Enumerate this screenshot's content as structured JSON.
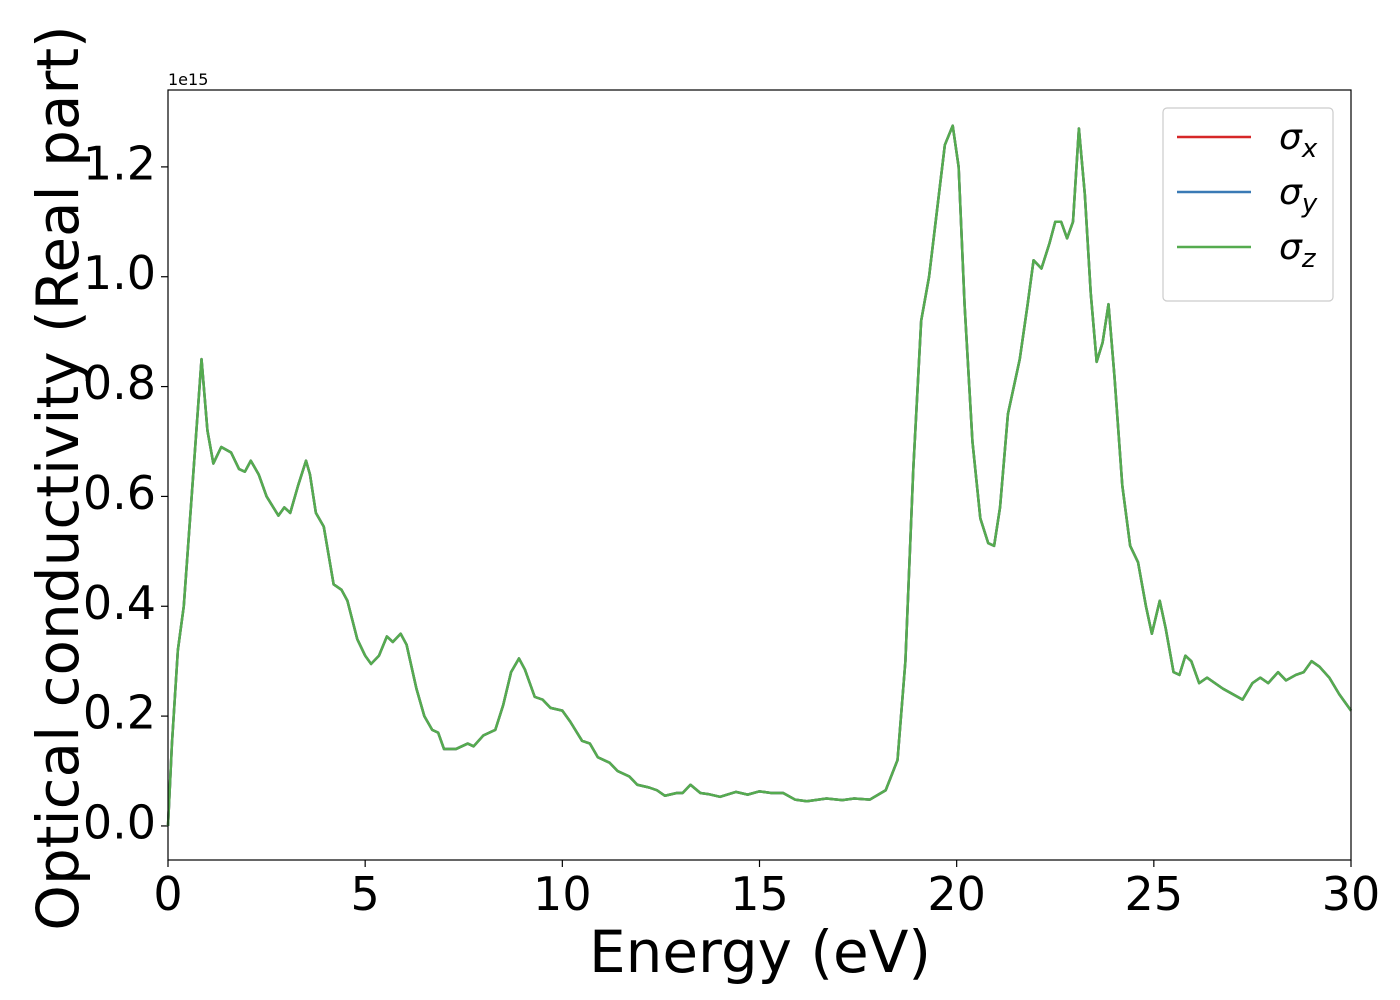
{
  "chart_data": {
    "type": "line",
    "xlabel": "Energy (eV)",
    "ylabel": "Optical conductivity (Real part)",
    "y_offset_label": "1e15",
    "xlim": [
      0,
      30
    ],
    "ylim": [
      -0.062,
      1.34
    ],
    "xticks": [
      0,
      5,
      10,
      15,
      20,
      25,
      30
    ],
    "yticks": [
      {
        "value": 0,
        "label": "0.0"
      },
      0.2,
      0.4,
      0.6,
      0.8,
      {
        "value": 1,
        "label": "1.0"
      },
      1.2
    ],
    "legend": "upper right",
    "grid": false,
    "x": [
      0,
      0.1,
      0.25,
      0.4,
      0.55,
      0.7,
      0.85,
      1.0,
      1.15,
      1.35,
      1.6,
      1.8,
      1.95,
      2.1,
      2.3,
      2.5,
      2.8,
      2.95,
      3.1,
      3.3,
      3.5,
      3.6,
      3.75,
      3.95,
      4.2,
      4.4,
      4.55,
      4.8,
      5.0,
      5.15,
      5.35,
      5.55,
      5.7,
      5.9,
      6.05,
      6.3,
      6.5,
      6.7,
      6.85,
      7.0,
      7.3,
      7.6,
      7.75,
      8.0,
      8.3,
      8.5,
      8.7,
      8.9,
      9.05,
      9.3,
      9.5,
      9.7,
      10.0,
      10.2,
      10.5,
      10.7,
      10.9,
      11.2,
      11.4,
      11.7,
      11.9,
      12.2,
      12.4,
      12.6,
      12.9,
      13.05,
      13.25,
      13.5,
      13.7,
      14.0,
      14.4,
      14.7,
      15.0,
      15.3,
      15.6,
      15.9,
      16.2,
      16.7,
      17.1,
      17.4,
      17.8,
      18.2,
      18.5,
      18.7,
      18.9,
      19.1,
      19.3,
      19.5,
      19.7,
      19.9,
      20.05,
      20.2,
      20.4,
      20.6,
      20.8,
      20.95,
      21.1,
      21.3,
      21.6,
      21.8,
      21.95,
      22.15,
      22.35,
      22.5,
      22.65,
      22.8,
      22.95,
      23.1,
      23.25,
      23.4,
      23.55,
      23.7,
      23.85,
      24.0,
      24.2,
      24.4,
      24.6,
      24.8,
      24.95,
      25.15,
      25.3,
      25.5,
      25.65,
      25.8,
      25.95,
      26.15,
      26.35,
      26.55,
      26.75,
      27.0,
      27.25,
      27.5,
      27.7,
      27.9,
      28.15,
      28.35,
      28.6,
      28.8,
      29.0,
      29.2,
      29.45,
      29.7,
      30.0
    ],
    "series": [
      {
        "name": "σx",
        "color": "#d62728",
        "values": [
          0.0,
          0.15,
          0.32,
          0.4,
          0.55,
          0.7,
          0.85,
          0.72,
          0.66,
          0.69,
          0.68,
          0.65,
          0.645,
          0.665,
          0.64,
          0.6,
          0.565,
          0.58,
          0.57,
          0.62,
          0.665,
          0.64,
          0.57,
          0.545,
          0.44,
          0.43,
          0.41,
          0.34,
          0.31,
          0.295,
          0.31,
          0.345,
          0.335,
          0.35,
          0.33,
          0.25,
          0.2,
          0.175,
          0.17,
          0.14,
          0.14,
          0.15,
          0.145,
          0.165,
          0.175,
          0.22,
          0.28,
          0.305,
          0.285,
          0.235,
          0.23,
          0.215,
          0.21,
          0.19,
          0.155,
          0.15,
          0.125,
          0.115,
          0.1,
          0.09,
          0.075,
          0.07,
          0.065,
          0.055,
          0.06,
          0.06,
          0.075,
          0.06,
          0.058,
          0.053,
          0.062,
          0.057,
          0.063,
          0.06,
          0.06,
          0.048,
          0.045,
          0.05,
          0.047,
          0.05,
          0.048,
          0.065,
          0.12,
          0.3,
          0.65,
          0.92,
          1.0,
          1.12,
          1.24,
          1.275,
          1.2,
          0.95,
          0.7,
          0.56,
          0.515,
          0.51,
          0.58,
          0.75,
          0.85,
          0.95,
          1.03,
          1.015,
          1.06,
          1.1,
          1.1,
          1.07,
          1.1,
          1.27,
          1.15,
          0.97,
          0.845,
          0.88,
          0.95,
          0.82,
          0.62,
          0.51,
          0.48,
          0.4,
          0.35,
          0.41,
          0.36,
          0.28,
          0.275,
          0.31,
          0.3,
          0.26,
          0.27,
          0.26,
          0.25,
          0.24,
          0.23,
          0.26,
          0.27,
          0.26,
          0.28,
          0.265,
          0.275,
          0.28,
          0.3,
          0.29,
          0.27,
          0.24,
          0.21
        ]
      },
      {
        "name": "σy",
        "color": "#3a7ab5",
        "values": [
          0.0,
          0.15,
          0.32,
          0.4,
          0.55,
          0.7,
          0.85,
          0.72,
          0.66,
          0.69,
          0.68,
          0.65,
          0.645,
          0.665,
          0.64,
          0.6,
          0.565,
          0.58,
          0.57,
          0.62,
          0.665,
          0.64,
          0.57,
          0.545,
          0.44,
          0.43,
          0.41,
          0.34,
          0.31,
          0.295,
          0.31,
          0.345,
          0.335,
          0.35,
          0.33,
          0.25,
          0.2,
          0.175,
          0.17,
          0.14,
          0.14,
          0.15,
          0.145,
          0.165,
          0.175,
          0.22,
          0.28,
          0.305,
          0.285,
          0.235,
          0.23,
          0.215,
          0.21,
          0.19,
          0.155,
          0.15,
          0.125,
          0.115,
          0.1,
          0.09,
          0.075,
          0.07,
          0.065,
          0.055,
          0.06,
          0.06,
          0.075,
          0.06,
          0.058,
          0.053,
          0.062,
          0.057,
          0.063,
          0.06,
          0.06,
          0.048,
          0.045,
          0.05,
          0.047,
          0.05,
          0.048,
          0.065,
          0.12,
          0.3,
          0.65,
          0.92,
          1.0,
          1.12,
          1.24,
          1.275,
          1.2,
          0.95,
          0.7,
          0.56,
          0.515,
          0.51,
          0.58,
          0.75,
          0.85,
          0.95,
          1.03,
          1.015,
          1.06,
          1.1,
          1.1,
          1.07,
          1.1,
          1.27,
          1.15,
          0.97,
          0.845,
          0.88,
          0.95,
          0.82,
          0.62,
          0.51,
          0.48,
          0.4,
          0.35,
          0.41,
          0.36,
          0.28,
          0.275,
          0.31,
          0.3,
          0.26,
          0.27,
          0.26,
          0.25,
          0.24,
          0.23,
          0.26,
          0.27,
          0.26,
          0.28,
          0.265,
          0.275,
          0.28,
          0.3,
          0.29,
          0.27,
          0.24,
          0.21
        ]
      },
      {
        "name": "σz",
        "color": "#55ab4f",
        "values": [
          0.0,
          0.15,
          0.32,
          0.4,
          0.55,
          0.7,
          0.85,
          0.72,
          0.66,
          0.69,
          0.68,
          0.65,
          0.645,
          0.665,
          0.64,
          0.6,
          0.565,
          0.58,
          0.57,
          0.62,
          0.665,
          0.64,
          0.57,
          0.545,
          0.44,
          0.43,
          0.41,
          0.34,
          0.31,
          0.295,
          0.31,
          0.345,
          0.335,
          0.35,
          0.33,
          0.25,
          0.2,
          0.175,
          0.17,
          0.14,
          0.14,
          0.15,
          0.145,
          0.165,
          0.175,
          0.22,
          0.28,
          0.305,
          0.285,
          0.235,
          0.23,
          0.215,
          0.21,
          0.19,
          0.155,
          0.15,
          0.125,
          0.115,
          0.1,
          0.09,
          0.075,
          0.07,
          0.065,
          0.055,
          0.06,
          0.06,
          0.075,
          0.06,
          0.058,
          0.053,
          0.062,
          0.057,
          0.063,
          0.06,
          0.06,
          0.048,
          0.045,
          0.05,
          0.047,
          0.05,
          0.048,
          0.065,
          0.12,
          0.3,
          0.65,
          0.92,
          1.0,
          1.12,
          1.24,
          1.275,
          1.2,
          0.95,
          0.7,
          0.56,
          0.515,
          0.51,
          0.58,
          0.75,
          0.85,
          0.95,
          1.03,
          1.015,
          1.06,
          1.1,
          1.1,
          1.07,
          1.1,
          1.27,
          1.15,
          0.97,
          0.845,
          0.88,
          0.95,
          0.82,
          0.62,
          0.51,
          0.48,
          0.4,
          0.35,
          0.41,
          0.36,
          0.28,
          0.275,
          0.31,
          0.3,
          0.26,
          0.27,
          0.26,
          0.25,
          0.24,
          0.23,
          0.26,
          0.27,
          0.26,
          0.28,
          0.265,
          0.275,
          0.28,
          0.3,
          0.29,
          0.27,
          0.24,
          0.21
        ]
      }
    ]
  }
}
